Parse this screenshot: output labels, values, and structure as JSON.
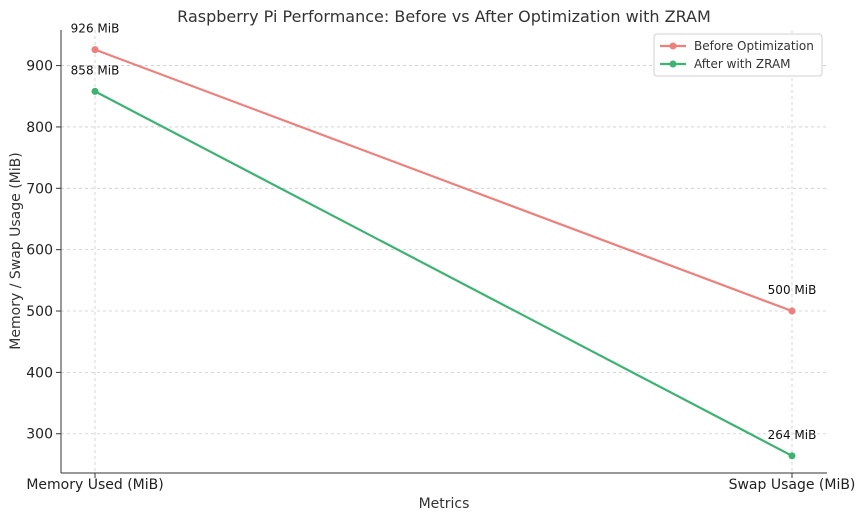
{
  "chart_data": {
    "type": "line",
    "title": "Raspberry Pi Performance: Before vs After Optimization with ZRAM",
    "xlabel": "Metrics",
    "ylabel": "Memory / Swap Usage (MiB)",
    "categories": [
      "Memory Used (MiB)",
      "Swap Usage (MiB)"
    ],
    "ylim": [
      236,
      958
    ],
    "yticks": [
      300,
      400,
      500,
      600,
      700,
      800,
      900
    ],
    "grid": true,
    "legend_position": "top-right",
    "series": [
      {
        "name": "Before Optimization",
        "color": "#ee7f7b",
        "values": [
          926,
          500
        ],
        "labels": [
          "926 MiB",
          "500 MiB"
        ]
      },
      {
        "name": "After with ZRAM",
        "color": "#3cb371",
        "values": [
          858,
          264
        ],
        "labels": [
          "858 MiB",
          "264 MiB"
        ]
      }
    ]
  }
}
